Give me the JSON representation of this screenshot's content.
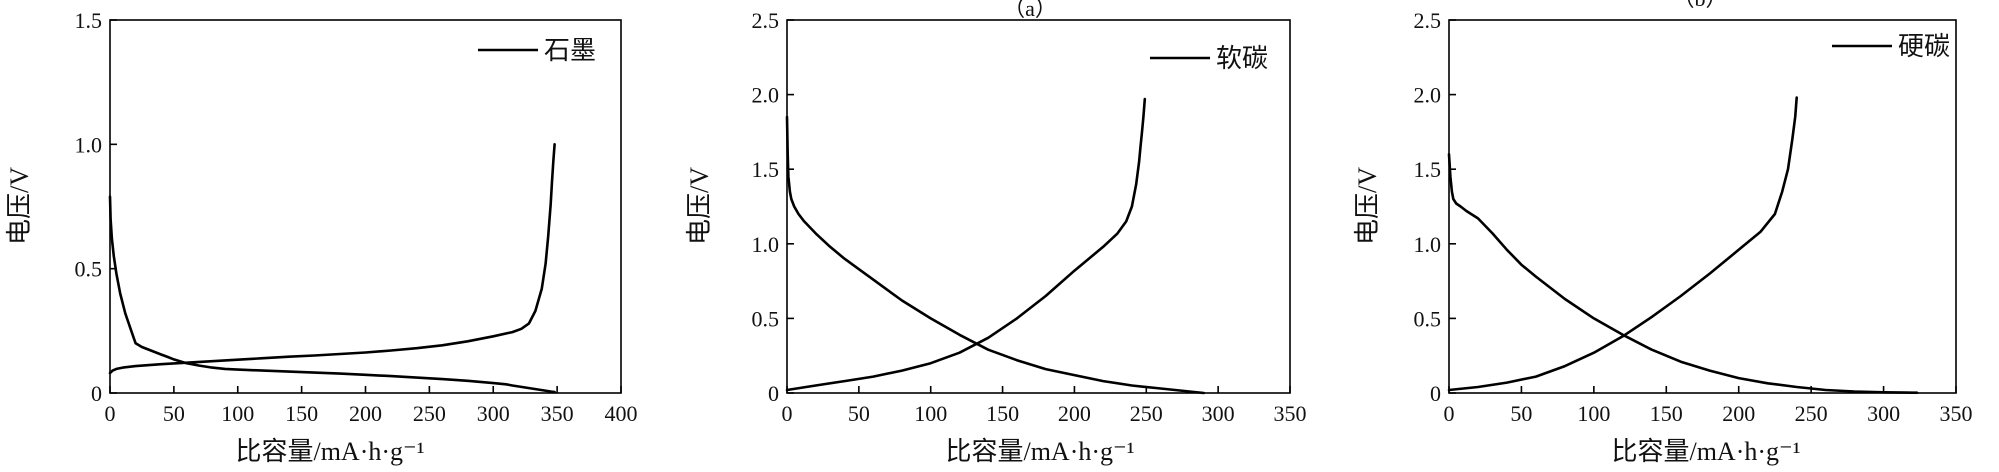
{
  "chart_data": [
    {
      "type": "line",
      "caption": "",
      "xlabel": "比容量/mA·h·g⁻¹",
      "ylabel": "电压/V",
      "xlim": [
        0,
        400
      ],
      "ylim": [
        0,
        1.5
      ],
      "xticks": [
        "0",
        "50",
        "100",
        "150",
        "200",
        "250",
        "300",
        "350",
        "400"
      ],
      "yticks": [
        "0",
        "0.5",
        "1.0",
        "1.5"
      ],
      "legend_position": "top-right",
      "series": [
        {
          "name": "石墨",
          "segments": [
            {
              "x": [
                0,
                0.5,
                1.5,
                3,
                5,
                8,
                12,
                16,
                20,
                25,
                30,
                35,
                40,
                45,
                50,
                55,
                60,
                70,
                80,
                90,
                100,
                120,
                140,
                160,
                180,
                200,
                220,
                240,
                260,
                280,
                300,
                310,
                315,
                320,
                325,
                330,
                335,
                340,
                345,
                348
              ],
              "y": [
                0.79,
                0.7,
                0.62,
                0.55,
                0.48,
                0.4,
                0.32,
                0.26,
                0.2,
                0.185,
                0.175,
                0.165,
                0.155,
                0.145,
                0.135,
                0.127,
                0.12,
                0.11,
                0.102,
                0.097,
                0.094,
                0.09,
                0.086,
                0.082,
                0.078,
                0.073,
                0.068,
                0.062,
                0.056,
                0.049,
                0.04,
                0.035,
                0.03,
                0.026,
                0.022,
                0.018,
                0.014,
                0.01,
                0.006,
                0.004
              ]
            },
            {
              "x": [
                0,
                2,
                5,
                10,
                20,
                40,
                60,
                80,
                100,
                120,
                140,
                160,
                180,
                200,
                220,
                240,
                260,
                280,
                300,
                315,
                322,
                328,
                333,
                338,
                341,
                343,
                345,
                346,
                347,
                348
              ],
              "y": [
                0.08,
                0.09,
                0.097,
                0.102,
                0.108,
                0.116,
                0.122,
                0.128,
                0.134,
                0.14,
                0.146,
                0.151,
                0.157,
                0.163,
                0.171,
                0.18,
                0.192,
                0.208,
                0.228,
                0.245,
                0.258,
                0.28,
                0.33,
                0.42,
                0.52,
                0.63,
                0.76,
                0.85,
                0.93,
                1.0
              ]
            }
          ]
        }
      ]
    },
    {
      "type": "line",
      "caption": "（a）",
      "xlabel": "比容量/mA·h·g⁻¹",
      "ylabel": "电压/V",
      "xlim": [
        0,
        350
      ],
      "ylim": [
        0,
        2.5
      ],
      "xticks": [
        "0",
        "50",
        "100",
        "150",
        "200",
        "250",
        "300",
        "350"
      ],
      "yticks": [
        "0",
        "0.5",
        "1.0",
        "1.5",
        "2.0",
        "2.5"
      ],
      "legend_position": "top-right",
      "series": [
        {
          "name": "软碳",
          "segments": [
            {
              "x": [
                0,
                0.5,
                1,
                2,
                3,
                5,
                8,
                12,
                20,
                30,
                40,
                50,
                60,
                70,
                80,
                100,
                120,
                140,
                160,
                180,
                200,
                220,
                240,
                260,
                280,
                290
              ],
              "y": [
                1.85,
                1.6,
                1.45,
                1.35,
                1.3,
                1.25,
                1.2,
                1.15,
                1.07,
                0.98,
                0.9,
                0.83,
                0.76,
                0.69,
                0.62,
                0.5,
                0.39,
                0.29,
                0.22,
                0.16,
                0.12,
                0.08,
                0.05,
                0.03,
                0.01,
                0.0
              ]
            },
            {
              "x": [
                0,
                20,
                40,
                60,
                80,
                100,
                120,
                140,
                160,
                180,
                200,
                220,
                230,
                236,
                240,
                243,
                245,
                246,
                247,
                248,
                249
              ],
              "y": [
                0.02,
                0.05,
                0.08,
                0.11,
                0.15,
                0.2,
                0.27,
                0.37,
                0.5,
                0.65,
                0.82,
                0.98,
                1.07,
                1.15,
                1.25,
                1.4,
                1.55,
                1.65,
                1.75,
                1.85,
                1.97
              ]
            }
          ]
        }
      ]
    },
    {
      "type": "line",
      "caption": "（b）",
      "xlabel": "比容量/mA·h·g⁻¹",
      "ylabel": "电压/V",
      "xlim": [
        0,
        350
      ],
      "ylim": [
        0,
        2.5
      ],
      "xticks": [
        "0",
        "50",
        "100",
        "150",
        "200",
        "250",
        "300",
        "350"
      ],
      "yticks": [
        "0",
        "0.5",
        "1.0",
        "1.5",
        "2.0",
        "2.5"
      ],
      "legend_position": "top-right",
      "series": [
        {
          "name": "硬碳",
          "segments": [
            {
              "x": [
                0,
                1,
                2,
                3,
                5,
                8,
                12,
                20,
                30,
                40,
                50,
                60,
                80,
                100,
                120,
                140,
                160,
                180,
                200,
                220,
                240,
                260,
                280,
                300,
                320,
                323
              ],
              "y": [
                1.6,
                1.45,
                1.35,
                1.3,
                1.27,
                1.25,
                1.22,
                1.17,
                1.07,
                0.96,
                0.86,
                0.78,
                0.63,
                0.5,
                0.39,
                0.29,
                0.21,
                0.15,
                0.1,
                0.065,
                0.04,
                0.02,
                0.01,
                0.005,
                0.002,
                0.002
              ]
            },
            {
              "x": [
                0,
                20,
                40,
                60,
                80,
                100,
                120,
                140,
                160,
                180,
                200,
                215,
                225,
                230,
                234,
                237,
                239,
                240
              ],
              "y": [
                0.02,
                0.04,
                0.07,
                0.11,
                0.18,
                0.27,
                0.38,
                0.51,
                0.65,
                0.8,
                0.96,
                1.08,
                1.2,
                1.35,
                1.5,
                1.7,
                1.85,
                1.98
              ]
            }
          ]
        }
      ]
    }
  ]
}
